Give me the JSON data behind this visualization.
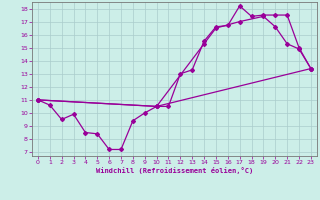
{
  "xlabel": "Windchill (Refroidissement éolien,°C)",
  "bg_color": "#cceee8",
  "grid_color": "#aacccc",
  "line_color": "#990099",
  "xlim": [
    -0.5,
    23.5
  ],
  "ylim": [
    6.7,
    18.5
  ],
  "xticks": [
    0,
    1,
    2,
    3,
    4,
    5,
    6,
    7,
    8,
    9,
    10,
    11,
    12,
    13,
    14,
    15,
    16,
    17,
    18,
    19,
    20,
    21,
    22,
    23
  ],
  "yticks": [
    7,
    8,
    9,
    10,
    11,
    12,
    13,
    14,
    15,
    16,
    17,
    18
  ],
  "line1_x": [
    0,
    1,
    2,
    3,
    4,
    5,
    6,
    7,
    8,
    9,
    10,
    11,
    12,
    13,
    14,
    15,
    16,
    17,
    18,
    19,
    20,
    21,
    22,
    23
  ],
  "line1_y": [
    11.0,
    10.6,
    9.5,
    9.9,
    8.5,
    8.4,
    7.2,
    7.2,
    9.4,
    10.0,
    10.5,
    10.5,
    13.0,
    13.3,
    15.5,
    16.6,
    16.7,
    18.2,
    17.4,
    17.5,
    17.5,
    17.5,
    15.0,
    13.4
  ],
  "line2_x": [
    0,
    10,
    14,
    15,
    17,
    19,
    20,
    21,
    22,
    23
  ],
  "line2_y": [
    11.0,
    10.5,
    15.3,
    16.5,
    17.0,
    17.4,
    16.6,
    15.3,
    14.9,
    13.4
  ],
  "line3_x": [
    0,
    10,
    23
  ],
  "line3_y": [
    11.0,
    10.5,
    13.4
  ]
}
